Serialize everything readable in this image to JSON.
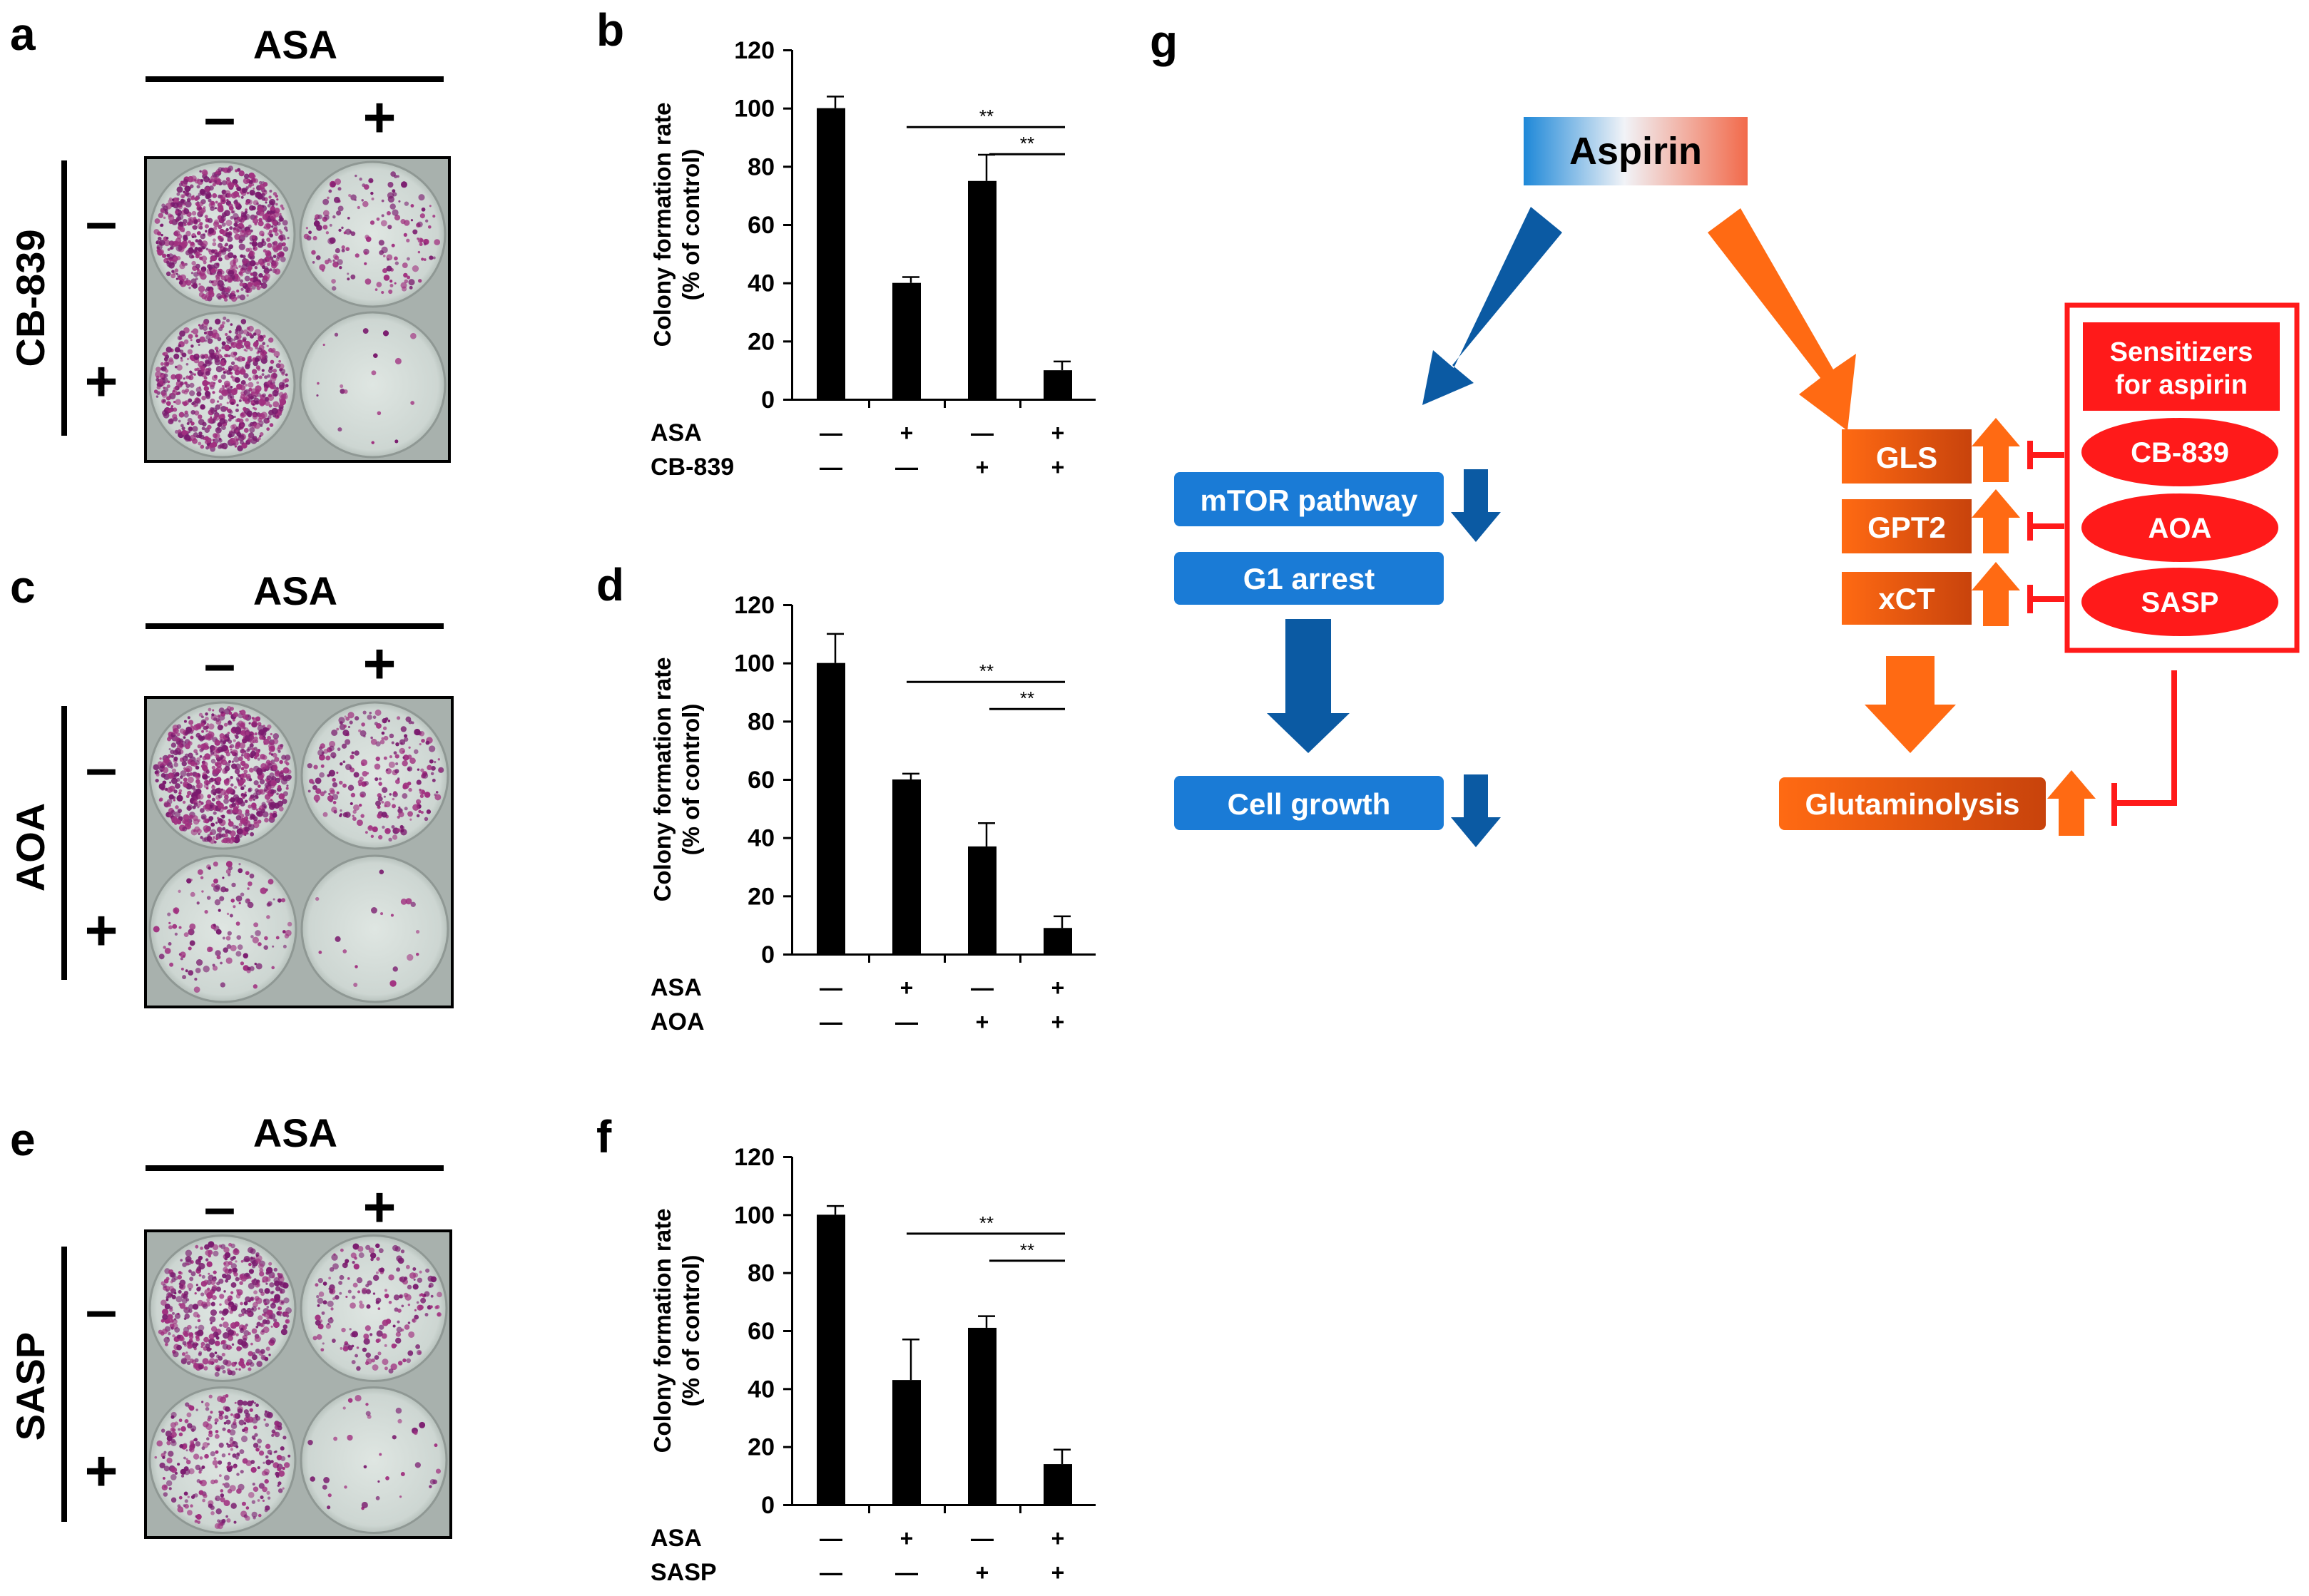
{
  "panel_letters": {
    "a": "a",
    "b": "b",
    "c": "c",
    "d": "d",
    "e": "e",
    "f": "f",
    "g": "g"
  },
  "plates": [
    {
      "asa_label": "ASA",
      "minus": "–",
      "plus": "+",
      "side_label": "CB-839",
      "wells": {
        "tl": 0.85,
        "tr": 0.18,
        "bl": 0.75,
        "br": 0.02
      }
    },
    {
      "asa_label": "ASA",
      "minus": "–",
      "plus": "+",
      "side_label": "AOA",
      "wells": {
        "tl": 0.9,
        "tr": 0.28,
        "bl": 0.15,
        "br": 0.02
      }
    },
    {
      "asa_label": "ASA",
      "minus": "–",
      "plus": "+",
      "side_label": "SASP",
      "wells": {
        "tl": 0.55,
        "tr": 0.22,
        "bl": 0.35,
        "br": 0.04
      }
    }
  ],
  "chart_data": [
    {
      "type": "bar",
      "ylabel_line1": "Colony formation rate",
      "ylabel_line2": "(% of control)",
      "ylim": [
        0,
        120
      ],
      "yticks": [
        "0",
        "20",
        "40",
        "60",
        "80",
        "100",
        "120"
      ],
      "values": [
        100,
        40,
        75,
        10
      ],
      "errors": [
        4,
        2,
        9,
        3
      ],
      "row1_label": "ASA",
      "row1": [
        "—",
        "+",
        "—",
        "+"
      ],
      "row2_label": "CB-839",
      "row2": [
        "—",
        "—",
        "+",
        "+"
      ],
      "sig": [
        "**",
        "**"
      ]
    },
    {
      "type": "bar",
      "ylabel_line1": "Colony formation rate",
      "ylabel_line2": "(% of control)",
      "ylim": [
        0,
        120
      ],
      "yticks": [
        "0",
        "20",
        "40",
        "60",
        "80",
        "100",
        "120"
      ],
      "values": [
        100,
        60,
        37,
        9
      ],
      "errors": [
        10,
        2,
        8,
        4
      ],
      "row1_label": "ASA",
      "row1": [
        "—",
        "+",
        "—",
        "+"
      ],
      "row2_label": "AOA",
      "row2": [
        "—",
        "—",
        "+",
        "+"
      ],
      "sig": [
        "**",
        "**"
      ]
    },
    {
      "type": "bar",
      "ylabel_line1": "Colony formation rate",
      "ylabel_line2": "(% of control)",
      "ylim": [
        0,
        120
      ],
      "yticks": [
        "0",
        "20",
        "40",
        "60",
        "80",
        "100",
        "120"
      ],
      "values": [
        100,
        43,
        61,
        14
      ],
      "errors": [
        3,
        14,
        4,
        5
      ],
      "row1_label": "ASA",
      "row1": [
        "—",
        "+",
        "—",
        "+"
      ],
      "row2_label": "SASP",
      "row2": [
        "—",
        "—",
        "+",
        "+"
      ],
      "sig": [
        "**",
        "**"
      ]
    }
  ],
  "diagram": {
    "aspirin": "Aspirin",
    "mtor": "mTOR pathway",
    "g1": "G1 arrest",
    "cell_growth": "Cell growth",
    "gls": "GLS",
    "gpt2": "GPT2",
    "xct": "xCT",
    "glutaminolysis": "Glutaminolysis",
    "sensitizers_line1": "Sensitizers",
    "sensitizers_line2": "for aspirin",
    "cb839": "CB-839",
    "aoa": "AOA",
    "sasp": "SASP",
    "colors": {
      "blue_dark": "#0b5aa3",
      "blue_box": "#1a7bd6",
      "orange": "#ff6a13",
      "orange_dark": "#d94e10",
      "red": "#ff1a1a"
    }
  }
}
